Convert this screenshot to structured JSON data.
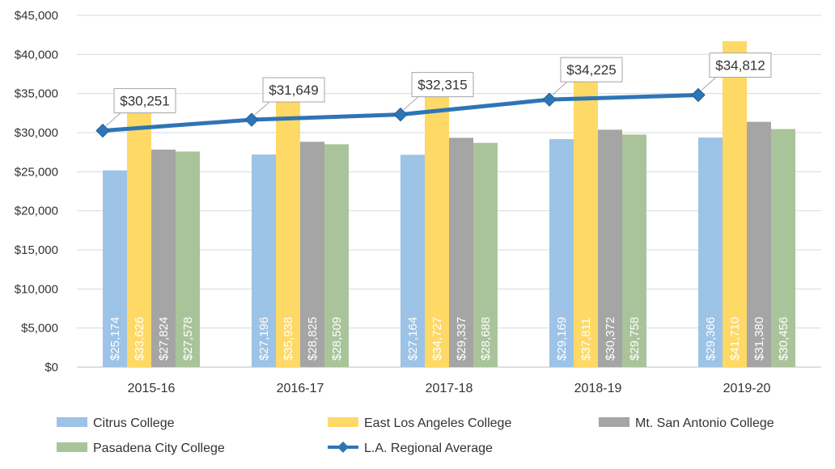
{
  "chart_data": {
    "type": "bar",
    "title": "",
    "xlabel": "",
    "ylabel": "",
    "ylim": [
      0,
      45000
    ],
    "ytick_values": [
      0,
      5000,
      10000,
      15000,
      20000,
      25000,
      30000,
      35000,
      40000,
      45000
    ],
    "ytick_labels": [
      "$0",
      "$5,000",
      "$10,000",
      "$15,000",
      "$20,000",
      "$25,000",
      "$30,000",
      "$35,000",
      "$40,000",
      "$45,000"
    ],
    "categories": [
      "2015-16",
      "2016-17",
      "2017-18",
      "2018-19",
      "2019-20"
    ],
    "grid": true,
    "legend_position": "bottom",
    "series": [
      {
        "name": "Citrus College",
        "type": "bar",
        "color": "#9DC3E6",
        "values": [
          25174,
          27196,
          27164,
          29169,
          29366
        ],
        "labels": [
          "$25,174",
          "$27,196",
          "$27,164",
          "$29,169",
          "$29,366"
        ]
      },
      {
        "name": "East Los Angeles College",
        "type": "bar",
        "color": "#FFD966",
        "values": [
          33626,
          35938,
          34727,
          37811,
          41710
        ],
        "labels": [
          "$33,626",
          "$35,938",
          "$34,727",
          "$37,811",
          "$41,710"
        ]
      },
      {
        "name": "Mt. San Antonio College",
        "type": "bar",
        "color": "#A5A5A5",
        "values": [
          27824,
          28825,
          29337,
          30372,
          31380
        ],
        "labels": [
          "$27,824",
          "$28,825",
          "$29,337",
          "$30,372",
          "$31,380"
        ]
      },
      {
        "name": "Pasadena City College",
        "type": "bar",
        "color": "#A9C49A",
        "values": [
          27578,
          28509,
          28688,
          29758,
          30456
        ],
        "labels": [
          "$27,578",
          "$28,509",
          "$28,688",
          "$29,758",
          "$30,456"
        ]
      },
      {
        "name": "L.A. Regional Average",
        "type": "line",
        "color": "#2E75B6",
        "values": [
          30251,
          31649,
          32315,
          34225,
          34812
        ],
        "labels": [
          "$30,251",
          "$31,649",
          "$32,315",
          "$34,225",
          "$34,812"
        ]
      }
    ]
  }
}
